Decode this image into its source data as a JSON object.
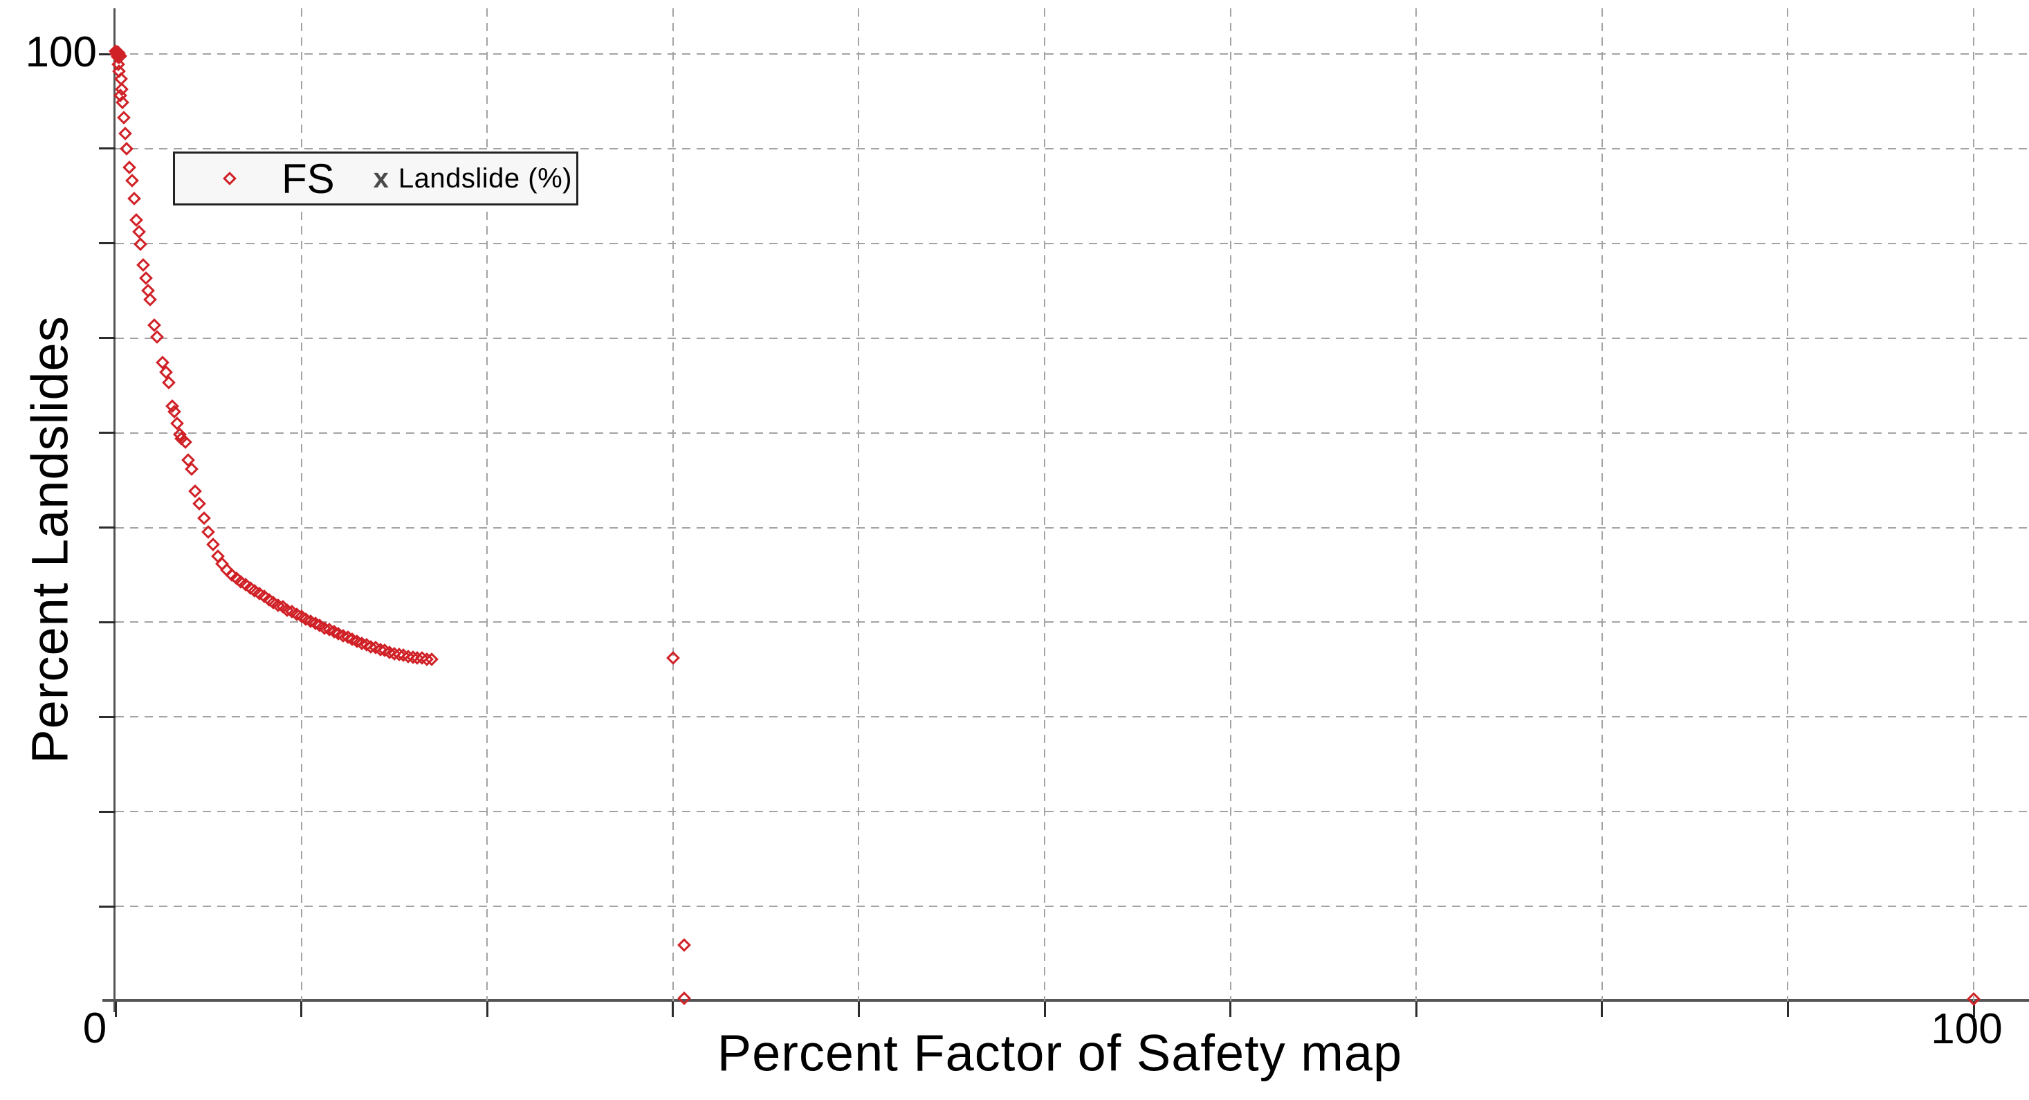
{
  "figure": {
    "background": "#ffffff",
    "axis_color": "#555555",
    "grid_color": "#a3a3a3",
    "marker_color": "#d02127",
    "legend_border_color": "#222222"
  },
  "chart_data": {
    "type": "scatter",
    "title": "",
    "xlabel": "Percent Factor of Safety map",
    "ylabel": "Percent Landslides",
    "xlim": [
      0,
      100
    ],
    "ylim": [
      0,
      100
    ],
    "x_tick_interval": 10,
    "y_tick_interval": 10,
    "grid": "dashed",
    "legend_position": "upper-left-inside",
    "visible_tick_labels": {
      "y_top": "100",
      "origin": "0",
      "x_right": "100"
    },
    "series": [
      {
        "name": "FS",
        "marker": "diamond",
        "marker_style": "hollow",
        "color": "#d02127",
        "points": [
          [
            0.0,
            100.3
          ],
          [
            0.1,
            100.2
          ],
          [
            0.2,
            100.1
          ],
          [
            0.05,
            100.0
          ],
          [
            0.15,
            99.9
          ],
          [
            0.25,
            99.8
          ],
          [
            0.1,
            99.7
          ],
          [
            0.2,
            99.6
          ],
          [
            0.15,
            98.9
          ],
          [
            0.2,
            98.2
          ],
          [
            0.28,
            97.4
          ],
          [
            0.33,
            96.3
          ],
          [
            0.25,
            95.6
          ],
          [
            0.38,
            94.9
          ],
          [
            0.45,
            93.3
          ],
          [
            0.52,
            91.6
          ],
          [
            0.6,
            90.0
          ],
          [
            0.75,
            88.0
          ],
          [
            0.88,
            86.6
          ],
          [
            1.0,
            84.7
          ],
          [
            1.12,
            82.5
          ],
          [
            1.25,
            81.2
          ],
          [
            1.35,
            79.9
          ],
          [
            1.5,
            77.7
          ],
          [
            1.63,
            76.3
          ],
          [
            1.75,
            75.0
          ],
          [
            1.88,
            74.1
          ],
          [
            2.1,
            71.4
          ],
          [
            2.25,
            70.1
          ],
          [
            2.55,
            67.4
          ],
          [
            2.7,
            66.4
          ],
          [
            2.85,
            65.3
          ],
          [
            3.05,
            62.8
          ],
          [
            3.15,
            62.2
          ],
          [
            3.3,
            61.0
          ],
          [
            3.45,
            59.8
          ],
          [
            3.55,
            59.4
          ],
          [
            3.75,
            59.0
          ],
          [
            3.9,
            57.1
          ],
          [
            4.1,
            56.2
          ],
          [
            4.3,
            53.8
          ],
          [
            4.5,
            52.5
          ],
          [
            4.75,
            51.0
          ],
          [
            5.0,
            49.5
          ],
          [
            5.25,
            48.2
          ],
          [
            5.5,
            47.0
          ],
          [
            5.75,
            46.2
          ],
          [
            6.0,
            45.5
          ],
          [
            6.25,
            45.0
          ],
          [
            6.5,
            44.6
          ],
          [
            6.75,
            44.3
          ],
          [
            7.0,
            44.0
          ],
          [
            7.25,
            43.6
          ],
          [
            7.5,
            43.3
          ],
          [
            7.75,
            43.0
          ],
          [
            8.0,
            42.7
          ],
          [
            8.25,
            42.4
          ],
          [
            8.5,
            42.1
          ],
          [
            8.75,
            41.8
          ],
          [
            9.0,
            41.6
          ],
          [
            9.25,
            41.3
          ],
          [
            9.5,
            41.1
          ],
          [
            9.75,
            40.8
          ],
          [
            10.0,
            40.6
          ],
          [
            10.25,
            40.3
          ],
          [
            10.5,
            40.1
          ],
          [
            10.75,
            39.9
          ],
          [
            11.0,
            39.7
          ],
          [
            11.25,
            39.4
          ],
          [
            11.5,
            39.2
          ],
          [
            11.75,
            39.0
          ],
          [
            12.0,
            38.8
          ],
          [
            12.25,
            38.6
          ],
          [
            12.5,
            38.4
          ],
          [
            12.75,
            38.2
          ],
          [
            13.0,
            38.0
          ],
          [
            13.25,
            37.8
          ],
          [
            13.5,
            37.6
          ],
          [
            13.75,
            37.4
          ],
          [
            14.0,
            37.3
          ],
          [
            14.25,
            37.1
          ],
          [
            14.5,
            37.0
          ],
          [
            14.75,
            36.8
          ],
          [
            15.0,
            36.7
          ],
          [
            15.25,
            36.6
          ],
          [
            15.5,
            36.5
          ],
          [
            15.75,
            36.4
          ],
          [
            16.0,
            36.3
          ],
          [
            16.25,
            36.2
          ],
          [
            16.5,
            36.2
          ],
          [
            16.75,
            36.1
          ],
          [
            17.0,
            36.1
          ],
          [
            30.0,
            36.2
          ],
          [
            30.6,
            5.9
          ],
          [
            30.6,
            0.3
          ],
          [
            100.0,
            0.2
          ]
        ]
      },
      {
        "name": "Landslide (%)",
        "marker": "x",
        "marker_glyph": "x",
        "color": "#4a4a4a",
        "points": []
      }
    ]
  }
}
